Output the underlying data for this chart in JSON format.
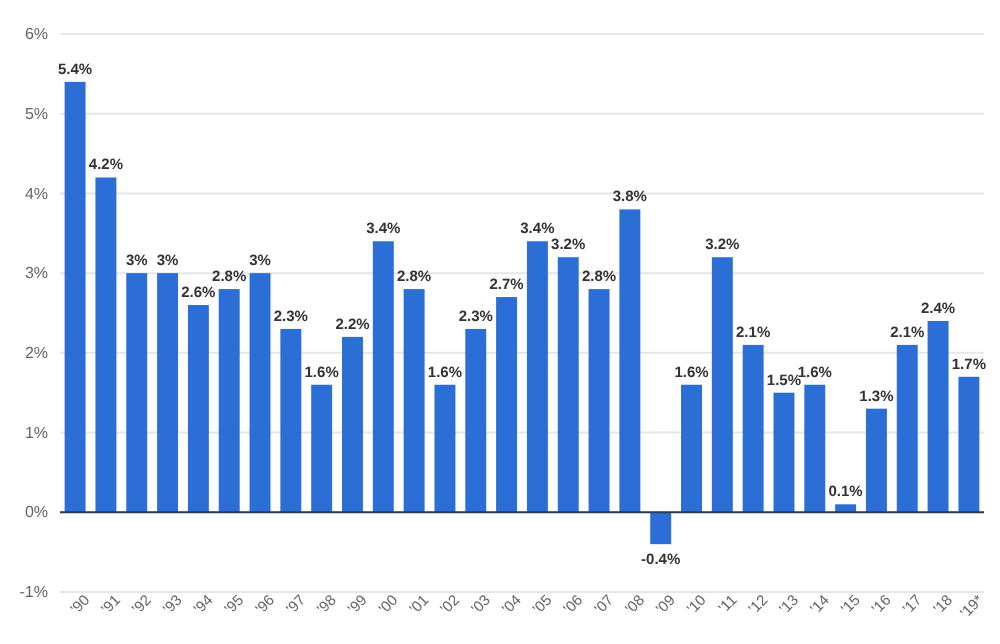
{
  "chart_data": {
    "type": "bar",
    "categories": [
      "'90",
      "'91",
      "'92",
      "'93",
      "'94",
      "'95",
      "'96",
      "'97",
      "'98",
      "'99",
      "'00",
      "'01",
      "'02",
      "'03",
      "'04",
      "'05",
      "'06",
      "'07",
      "'08",
      "'09",
      "'10",
      "'11",
      "'12",
      "'13",
      "'14",
      "'15",
      "'16",
      "'17",
      "'18",
      "'19*"
    ],
    "values": [
      5.4,
      4.2,
      3,
      3,
      2.6,
      2.8,
      3,
      2.3,
      1.6,
      2.2,
      3.4,
      2.8,
      1.6,
      2.3,
      2.7,
      3.4,
      3.2,
      2.8,
      3.8,
      -0.4,
      1.6,
      3.2,
      2.1,
      1.5,
      1.6,
      0.1,
      1.3,
      2.1,
      2.4,
      1.7
    ],
    "value_labels": [
      "5.4%",
      "4.2%",
      "3%",
      "3%",
      "2.6%",
      "2.8%",
      "3%",
      "2.3%",
      "1.6%",
      "2.2%",
      "3.4%",
      "2.8%",
      "1.6%",
      "2.3%",
      "2.7%",
      "3.4%",
      "3.2%",
      "2.8%",
      "3.8%",
      "-0.4%",
      "1.6%",
      "3.2%",
      "2.1%",
      "1.5%",
      "1.6%",
      "0.1%",
      "1.3%",
      "2.1%",
      "2.4%",
      "1.7%"
    ],
    "color": "#2b6fd6",
    "ylim": [
      -1,
      6
    ],
    "yticks": [
      {
        "value": -1,
        "label": "-1%"
      },
      {
        "value": 0,
        "label": "0%"
      },
      {
        "value": 1,
        "label": "1%"
      },
      {
        "value": 2,
        "label": "2%"
      },
      {
        "value": 3,
        "label": "3%"
      },
      {
        "value": 4,
        "label": "4%"
      },
      {
        "value": 5,
        "label": "5%"
      },
      {
        "value": 6,
        "label": "6%"
      }
    ],
    "grid": "y"
  }
}
